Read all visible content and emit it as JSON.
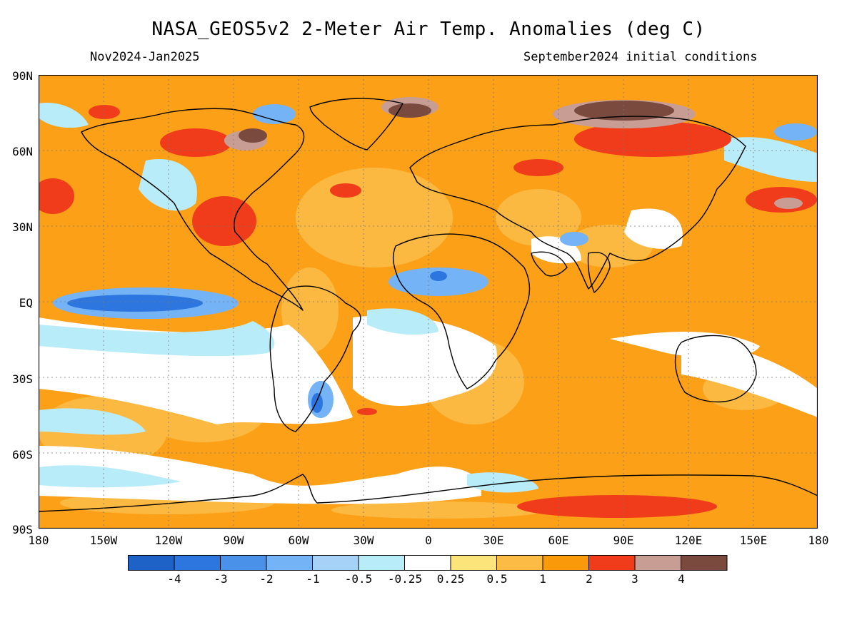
{
  "header": {
    "title": "NASA_GEOS5v2 2-Meter Air Temp. Anomalies (deg C)",
    "period": "Nov2024-Jan2025",
    "init": "September2024 initial conditions"
  },
  "axes": {
    "lat_labels": [
      "90N",
      "60N",
      "30N",
      "EQ",
      "30S",
      "60S",
      "90S"
    ],
    "lon_labels": [
      "180",
      "150W",
      "120W",
      "90W",
      "60W",
      "30W",
      "0",
      "30E",
      "60E",
      "90E",
      "120E",
      "150E",
      "180"
    ]
  },
  "legend": {
    "tick_labels": [
      "-4",
      "-3",
      "-2",
      "-1",
      "-0.5",
      "-0.25",
      "0.25",
      "0.5",
      "1",
      "2",
      "3",
      "4"
    ],
    "colors": [
      "#1e62c8",
      "#2d76e0",
      "#4a91ea",
      "#74b3f5",
      "#a6d2f7",
      "#b8ecf8",
      "#ffffff",
      "#fde47a",
      "#fcbb45",
      "#fa9a0a",
      "#f03c1a",
      "#c89e94",
      "#7a4a3e"
    ]
  },
  "map_data": {
    "background_color": "#fca018",
    "regions": [
      {
        "name": "Arctic warm anomaly",
        "color": "#fa9a0a"
      },
      {
        "name": "Siberia strong warm anomaly",
        "color": "#7a4a3e"
      },
      {
        "name": "Hudson Bay strong warm anomaly",
        "color": "#7a4a3e"
      },
      {
        "name": "Equatorial east Pacific cool anomaly",
        "color": "#2d76e0"
      },
      {
        "name": "Sahel cool anomaly",
        "color": "#74b3f5"
      },
      {
        "name": "Antarctic coastal warm anomaly",
        "color": "#f03c1a"
      }
    ]
  }
}
